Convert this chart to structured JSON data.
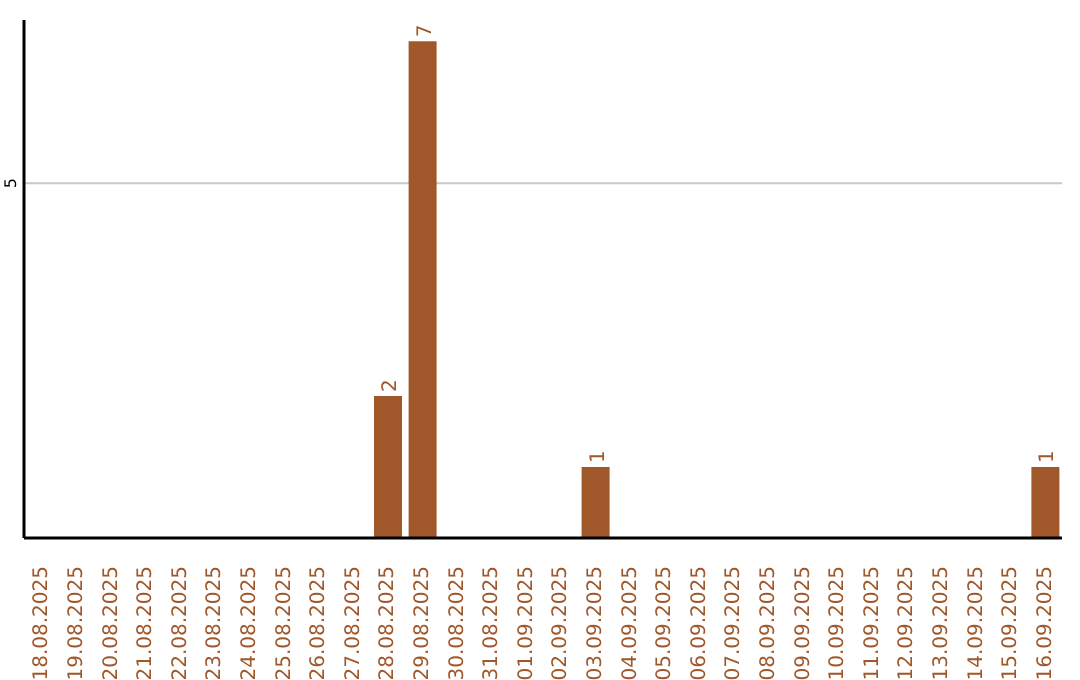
{
  "chart_data": {
    "type": "bar",
    "categories": [
      "18.08.2025",
      "19.08.2025",
      "20.08.2025",
      "21.08.2025",
      "22.08.2025",
      "23.08.2025",
      "24.08.2025",
      "25.08.2025",
      "26.08.2025",
      "27.08.2025",
      "28.08.2025",
      "29.08.2025",
      "30.08.2025",
      "31.08.2025",
      "01.09.2025",
      "02.09.2025",
      "03.09.2025",
      "04.09.2025",
      "05.09.2025",
      "06.09.2025",
      "07.09.2025",
      "08.09.2025",
      "09.09.2025",
      "10.09.2025",
      "11.09.2025",
      "12.09.2025",
      "13.09.2025",
      "14.09.2025",
      "15.09.2025",
      "16.09.2025"
    ],
    "values": [
      0,
      0,
      0,
      0,
      0,
      0,
      0,
      0,
      0,
      0,
      2,
      7,
      0,
      0,
      0,
      0,
      1,
      0,
      0,
      0,
      0,
      0,
      0,
      0,
      0,
      0,
      0,
      0,
      0,
      1
    ],
    "value_labels": [
      null,
      null,
      null,
      null,
      null,
      null,
      null,
      null,
      null,
      null,
      "2",
      "7",
      null,
      null,
      null,
      null,
      "1",
      null,
      null,
      null,
      null,
      null,
      null,
      null,
      null,
      null,
      null,
      null,
      null,
      "1"
    ],
    "color": "#a0572a",
    "ylim": [
      0,
      7.3
    ],
    "yticks": [
      5
    ],
    "grid": "y"
  }
}
